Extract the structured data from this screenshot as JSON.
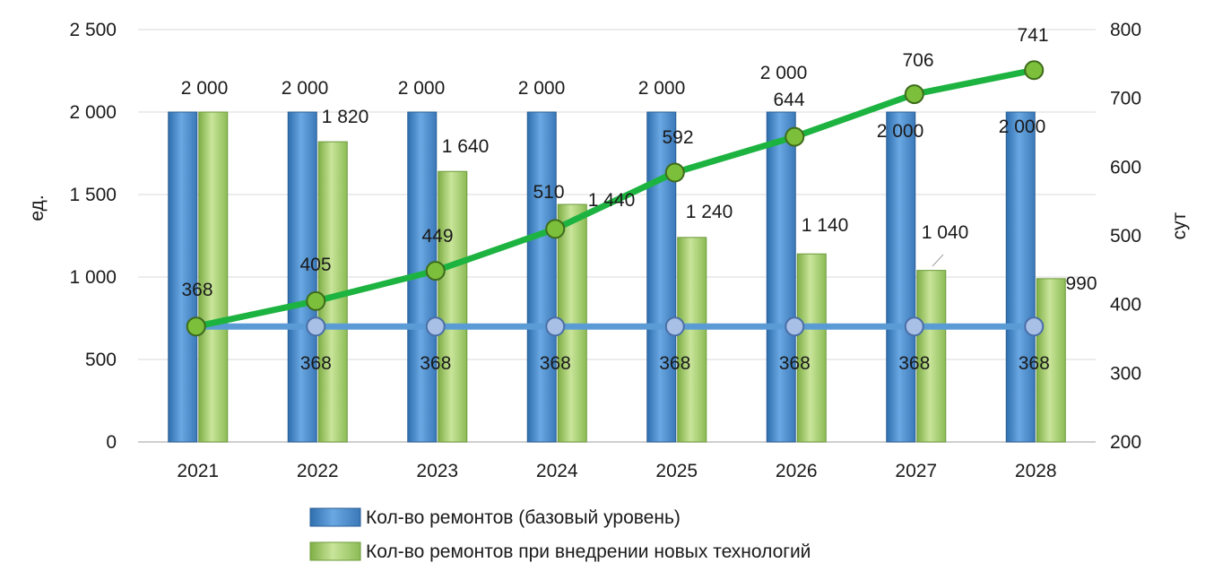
{
  "chart_data": {
    "type": "bar",
    "categories": [
      "2021",
      "2022",
      "2023",
      "2024",
      "2025",
      "2026",
      "2027",
      "2028"
    ],
    "ylabel": "ед.",
    "y2label": "сут",
    "ylim": [
      0,
      2500
    ],
    "y2lim": [
      200,
      800
    ],
    "yticks": [
      "0",
      "500",
      "1 000",
      "1 500",
      "2 000",
      "2 500"
    ],
    "y2ticks": [
      "200",
      "300",
      "400",
      "500",
      "600",
      "700",
      "800"
    ],
    "grid": true,
    "legend_position": "bottom",
    "series": [
      {
        "name": "Кол-во ремонтов (базовый уровень)",
        "kind": "bar",
        "axis": "left",
        "color": "#4f8fd0",
        "values": [
          2000,
          2000,
          2000,
          2000,
          2000,
          2000,
          2000,
          2000
        ],
        "labels": [
          "2 000",
          "2 000",
          "2 000",
          "2 000",
          "2 000",
          "2 000",
          "2 000",
          "2 000"
        ]
      },
      {
        "name": "Кол-во ремонтов при внедрении новых технологий",
        "kind": "bar",
        "axis": "left",
        "color": "#a9d36f",
        "values": [
          2000,
          1820,
          1640,
          1440,
          1240,
          1140,
          1040,
          990
        ],
        "labels": [
          "2 000",
          "1 820",
          "1 640",
          "1 440",
          "1 240",
          "1 140",
          "1 040",
          "990"
        ]
      },
      {
        "kind": "line",
        "axis": "right",
        "color": "#5b9bd5",
        "marker_color": "#a8bfe6",
        "values": [
          368,
          368,
          368,
          368,
          368,
          368,
          368,
          368
        ],
        "labels": [
          "368",
          "368",
          "368",
          "368",
          "368",
          "368",
          "368",
          "368"
        ]
      },
      {
        "kind": "line",
        "axis": "right",
        "color": "#1db340",
        "marker_color": "#7cbf3a",
        "values": [
          368,
          405,
          449,
          510,
          592,
          644,
          706,
          741
        ],
        "labels": [
          "368",
          "405",
          "449",
          "510",
          "592",
          "644",
          "706",
          "741"
        ]
      }
    ]
  }
}
